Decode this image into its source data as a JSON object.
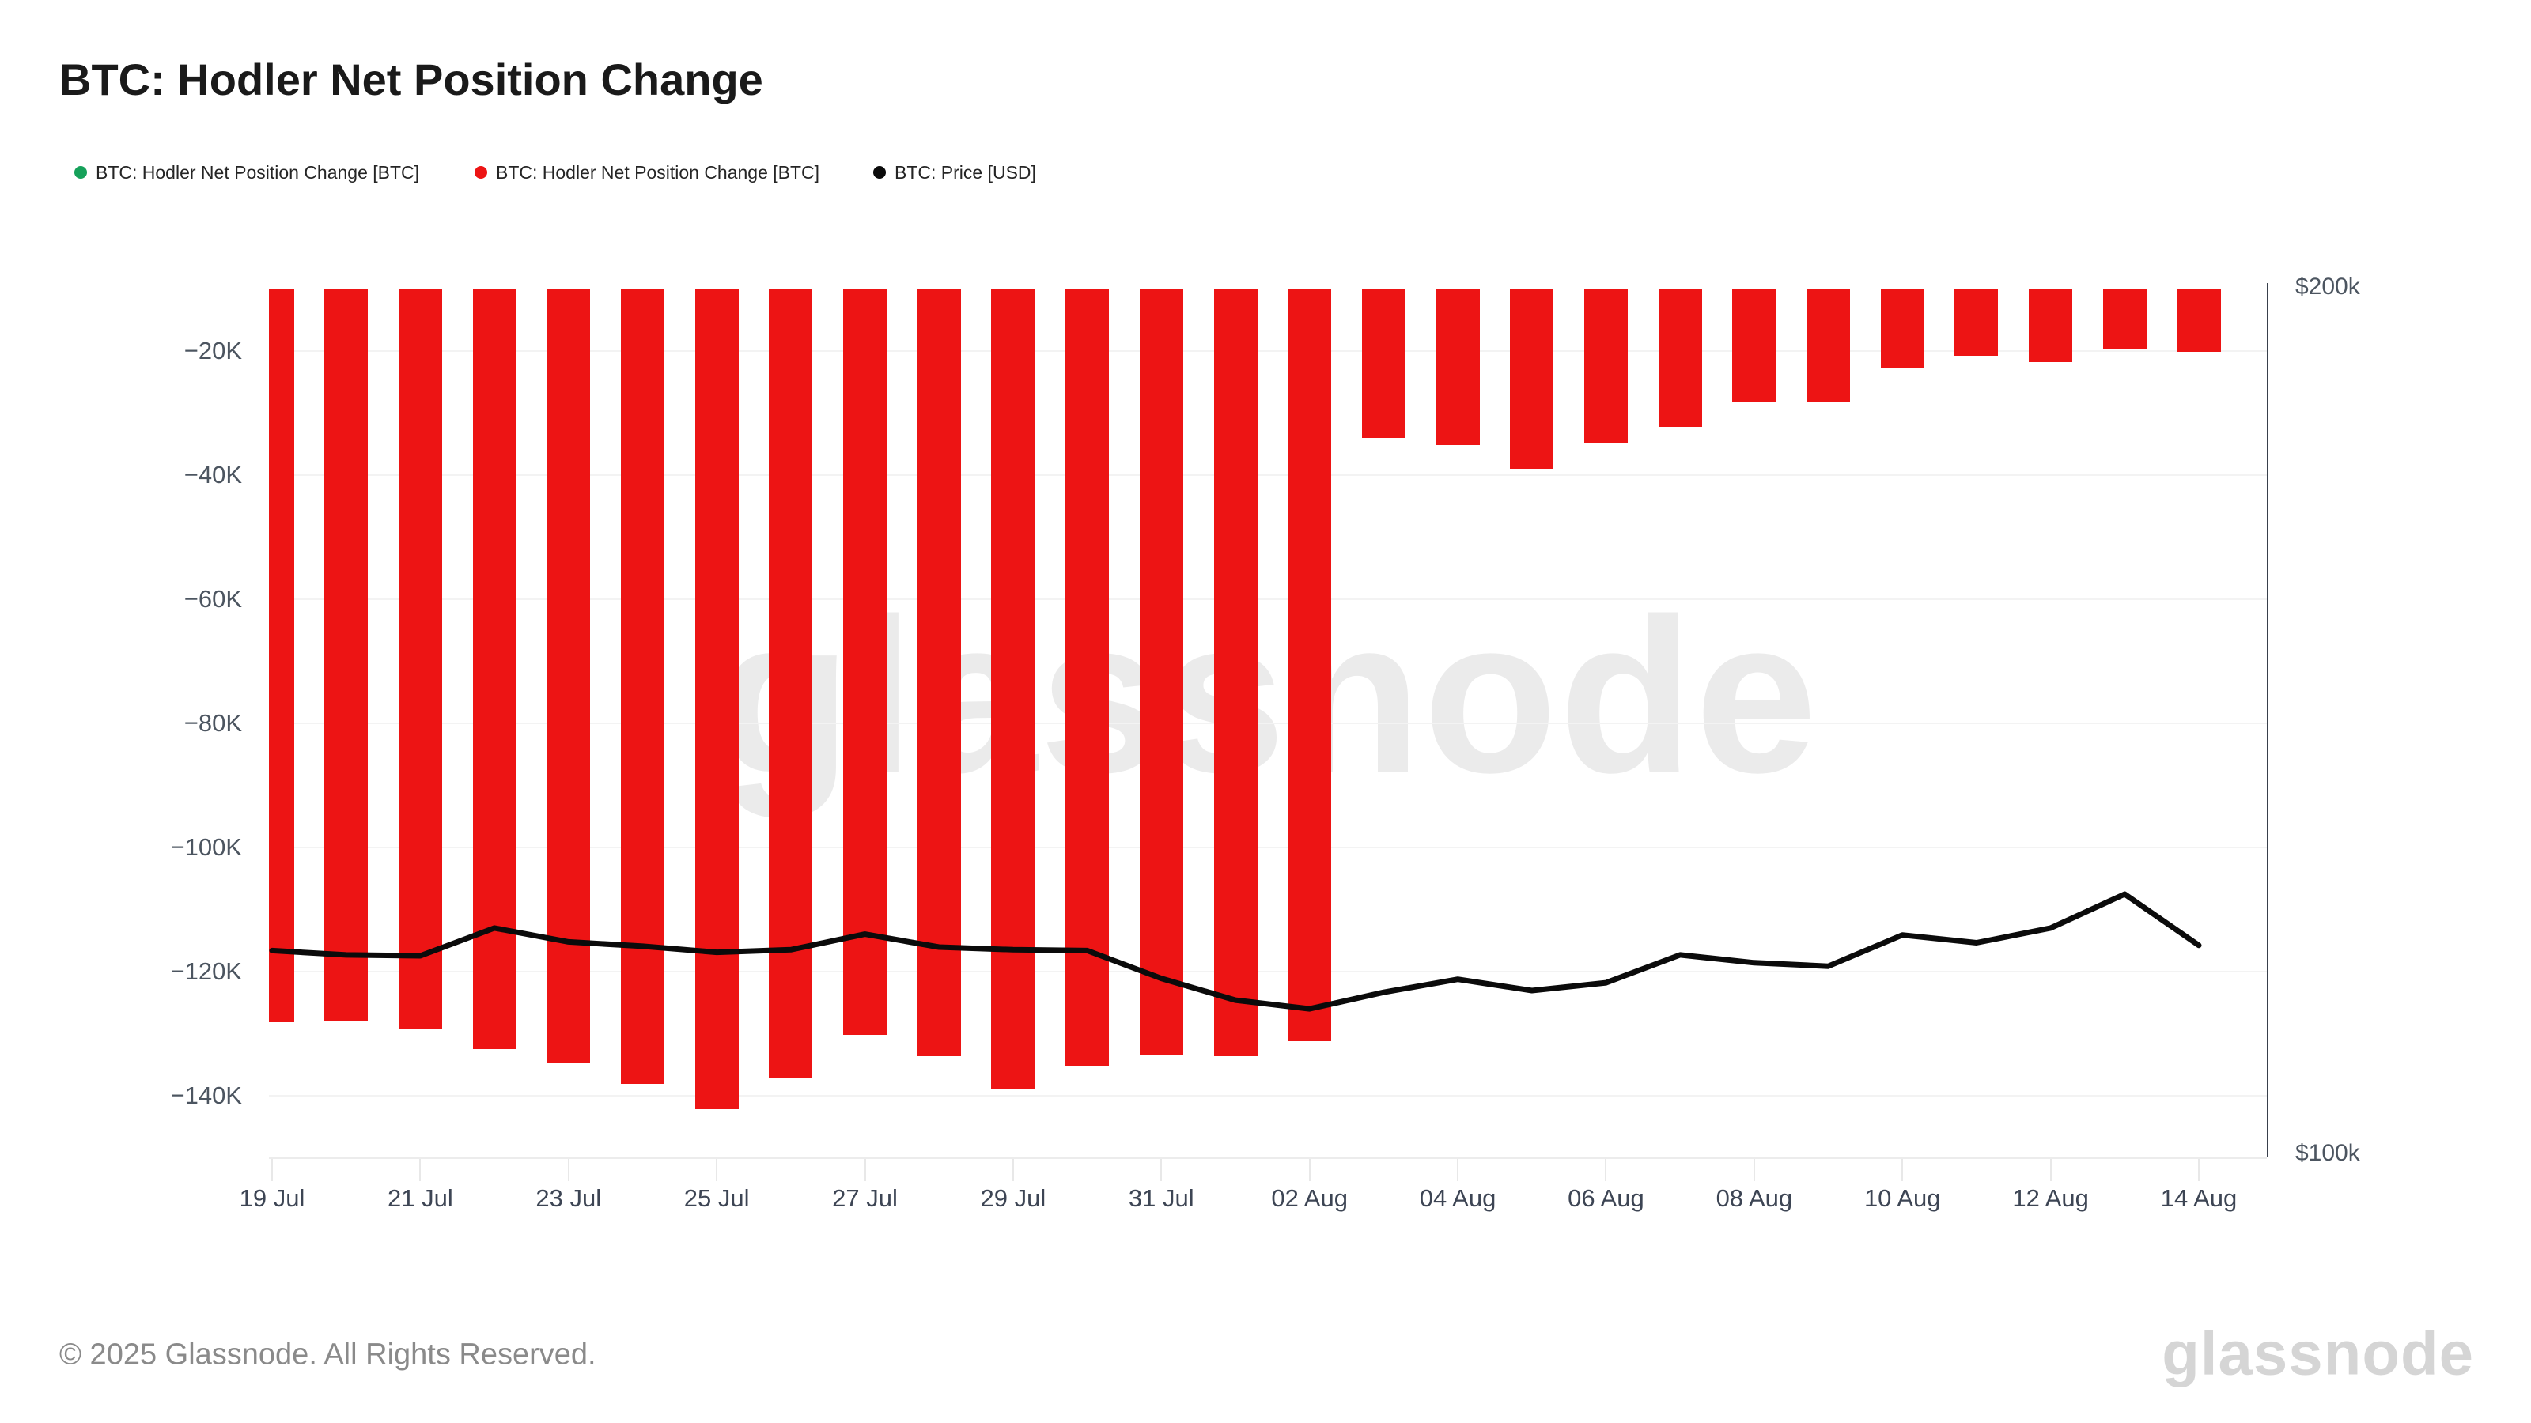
{
  "title": "BTC: Hodler Net Position Change",
  "legend": [
    {
      "label": "BTC: Hodler Net Position Change [BTC]",
      "color": "#16a15a"
    },
    {
      "label": "BTC: Hodler Net Position Change [BTC]",
      "color": "#ed1414"
    },
    {
      "label": "BTC: Price [USD]",
      "color": "#0b0b0b"
    }
  ],
  "watermark": "glassnode",
  "footer": {
    "copyright": "© 2025 Glassnode. All Rights Reserved.",
    "brand": "glassnode"
  },
  "axes": {
    "left": {
      "ticks": [
        {
          "label": "−20K",
          "value": -20
        },
        {
          "label": "−40K",
          "value": -40
        },
        {
          "label": "−60K",
          "value": -60
        },
        {
          "label": "−80K",
          "value": -80
        },
        {
          "label": "−100K",
          "value": -100
        },
        {
          "label": "−120K",
          "value": -120
        },
        {
          "label": "−140K",
          "value": -140
        }
      ]
    },
    "right": {
      "top_label": "$200k",
      "bottom_label": "$100k"
    },
    "x": {
      "labels": [
        "19 Jul",
        "21 Jul",
        "23 Jul",
        "25 Jul",
        "27 Jul",
        "29 Jul",
        "31 Jul",
        "02 Aug",
        "04 Aug",
        "06 Aug",
        "08 Aug",
        "10 Aug",
        "12 Aug",
        "14 Aug"
      ]
    }
  },
  "chart_data": {
    "type": "bar+line",
    "title": "BTC: Hodler Net Position Change",
    "categories": [
      "19 Jul",
      "20 Jul",
      "21 Jul",
      "22 Jul",
      "23 Jul",
      "24 Jul",
      "25 Jul",
      "26 Jul",
      "27 Jul",
      "28 Jul",
      "29 Jul",
      "30 Jul",
      "31 Jul",
      "01 Aug",
      "02 Aug",
      "03 Aug",
      "04 Aug",
      "05 Aug",
      "06 Aug",
      "07 Aug",
      "08 Aug",
      "09 Aug",
      "10 Aug",
      "11 Aug",
      "12 Aug",
      "13 Aug",
      "14 Aug"
    ],
    "series": [
      {
        "name": "BTC: Hodler Net Position Change [BTC]",
        "type": "bar",
        "unit": "K BTC",
        "color_positive": "#16a15a",
        "color_negative": "#ed1414",
        "values": [
          -128.2,
          -127.9,
          -129.4,
          -132.6,
          -134.8,
          -138.1,
          -142.2,
          -137.1,
          -130.3,
          -133.7,
          -139.0,
          -135.2,
          -133.5,
          -133.7,
          -131.3,
          -34.1,
          -35.2,
          -39.0,
          -34.9,
          -32.3,
          -28.4,
          -28.2,
          -22.8,
          -20.8,
          -21.9,
          -19.8,
          -20.2
        ],
        "note": "all values negative in visible range, so only red bars are drawn; bars hang from top of plot which is clipped at -10K"
      },
      {
        "name": "BTC: Price [USD]",
        "type": "line",
        "unit": "k USD",
        "color": "#0b0b0b",
        "values": [
          123.8,
          123.3,
          123.2,
          126.4,
          124.8,
          124.3,
          123.6,
          123.9,
          125.7,
          124.2,
          123.9,
          123.8,
          120.6,
          118.1,
          117.1,
          119.0,
          120.5,
          119.2,
          120.1,
          123.3,
          122.4,
          122.0,
          125.6,
          124.7,
          126.4,
          130.3,
          124.4
        ]
      }
    ],
    "bar_axis": {
      "top": -10,
      "bottom": -150,
      "gridline_values": [
        -20,
        -40,
        -60,
        -80,
        -100,
        -120,
        -140
      ],
      "grid": true
    },
    "price_axis": {
      "top": 200,
      "bottom": 100,
      "tick_labels": [
        "$200k",
        "$100k"
      ]
    },
    "legend_position": "top-left",
    "xlabel": "",
    "ylabel": ""
  }
}
